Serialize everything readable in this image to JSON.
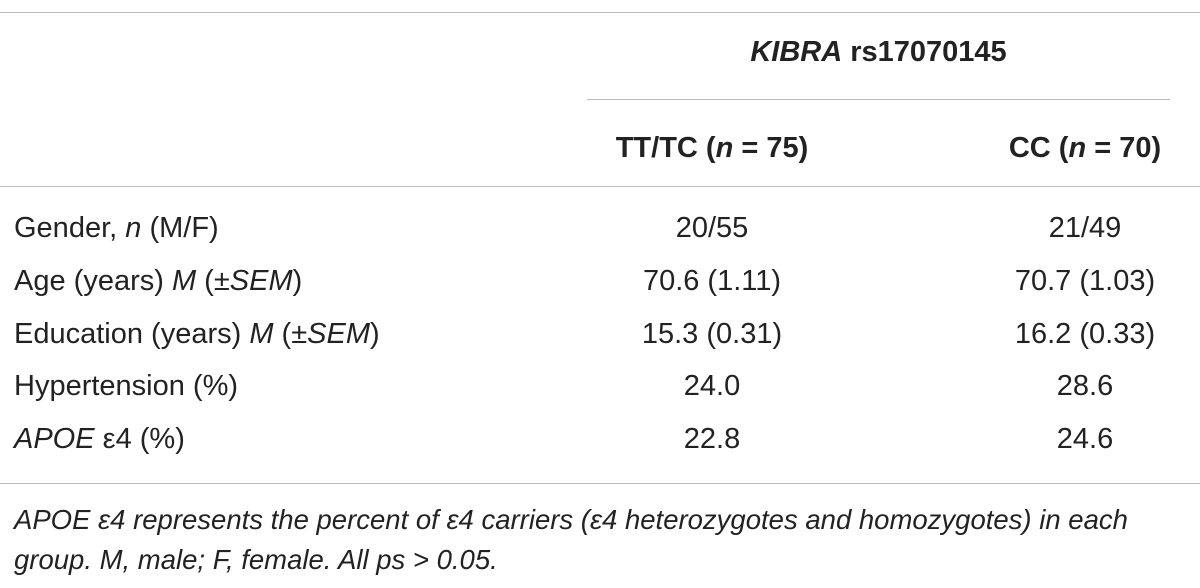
{
  "table": {
    "header": {
      "group": [
        "KIBRA",
        " rs17070145"
      ],
      "columns": [
        [
          "TT/TC (",
          "n",
          " = 75)"
        ],
        [
          "CC (",
          "n",
          " = 70)"
        ]
      ]
    },
    "rows": [
      {
        "label": [
          "Gender, ",
          "n",
          " (M/F)"
        ],
        "values": [
          "20/55",
          "21/49"
        ]
      },
      {
        "label": [
          "Age (years) ",
          "M",
          " (±",
          "SEM",
          ")"
        ],
        "values": [
          "70.6 (1.11)",
          "70.7 (1.03)"
        ]
      },
      {
        "label": [
          "Education (years) ",
          "M",
          " (±",
          "SEM",
          ")"
        ],
        "values": [
          "15.3 (0.31)",
          "16.2 (0.33)"
        ]
      },
      {
        "label": [
          "Hypertension (%)"
        ],
        "values": [
          "24.0",
          "28.6"
        ]
      },
      {
        "label": [
          "APOE",
          " ε4 (%)"
        ],
        "values": [
          "22.8",
          "24.6"
        ]
      }
    ]
  },
  "footnote": "APOE ε4 represents the percent of ε4 carriers (ε4 heterozygotes and homozygotes) in each group. M, male; F, female. All ps > 0.05."
}
